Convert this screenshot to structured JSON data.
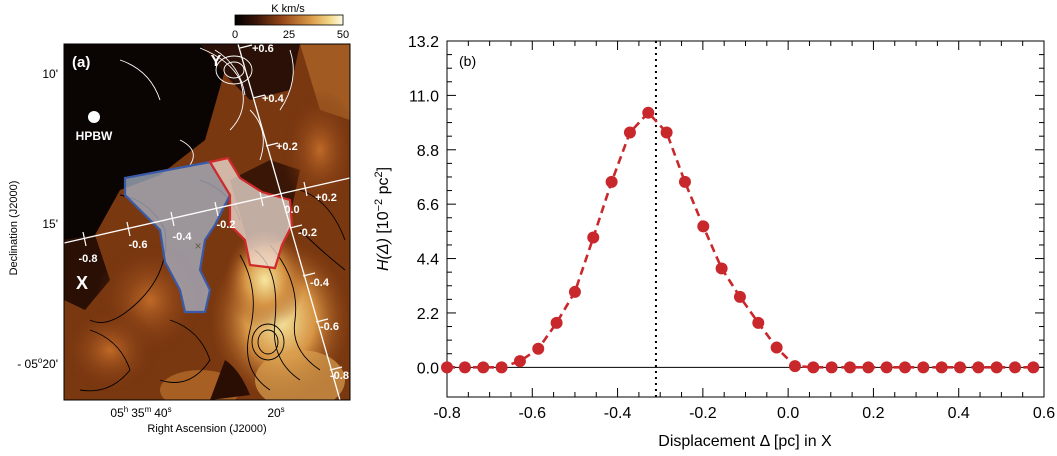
{
  "panel_a": {
    "label": "(a)",
    "colorbar": {
      "unit": "K km/s",
      "ticks": [
        "0",
        "25",
        "50"
      ]
    },
    "beam_label": "HPBW",
    "ylabel": "Declination (J2000)",
    "xlabel": "Right Ascension (J2000)",
    "dec_ticks": [
      "10'",
      "15'"
    ],
    "ra_tick_20s": "20",
    "ra_tick_20s_sup": "s",
    "dec_tick_main": "- 05",
    "dec_tick_main_sup": "o",
    "dec_tick_main_min": "20'",
    "ra_tick_main": {
      "h": "05",
      "h_sup": "h",
      "m": "35",
      "m_sup": "m",
      "s": "40",
      "s_sup": "s"
    },
    "axis_x_label": "X",
    "axis_y_label": "Y",
    "x_axis_ticks": [
      "-0.8",
      "-0.6",
      "-0.4",
      "-0.2",
      "0.0",
      "+0.2"
    ],
    "y_axis_ticks": [
      "+0.6",
      "+0.4",
      "+0.2",
      "-0.2",
      "-0.4",
      "-0.6",
      "-0.8"
    ]
  },
  "colors": {
    "marker": "#c8282c",
    "line": "#c8282c",
    "blue_outline": "#3a5aa8",
    "red_outline": "#d02a2a"
  },
  "chart_data": {
    "type": "scatter",
    "panel_label": "(b)",
    "xlabel": "Displacement Δ [pc] in X",
    "ylabel": "H(Δ) [10⁻² pc²]",
    "xlim": [
      -0.8,
      0.6
    ],
    "ylim": [
      -1.2,
      13.2
    ],
    "x_ticks": [
      "-0.8",
      "-0.6",
      "-0.4",
      "-0.2",
      "0.0",
      "0.2",
      "0.4",
      "0.6"
    ],
    "y_ticks": [
      "0.0",
      "2.2",
      "4.4",
      "6.6",
      "8.8",
      "11.0",
      "13.2"
    ],
    "peak_marker_x": -0.31,
    "grid": false,
    "series": [
      {
        "x": [
          -0.8,
          -0.758,
          -0.715,
          -0.672,
          -0.629,
          -0.586,
          -0.543,
          -0.5,
          -0.457,
          -0.414,
          -0.371,
          -0.328,
          -0.285,
          -0.242,
          -0.199,
          -0.156,
          -0.113,
          -0.07,
          -0.027,
          0.016,
          0.059,
          0.102,
          0.145,
          0.188,
          0.231,
          0.274,
          0.317,
          0.36,
          0.403,
          0.446,
          0.489,
          0.532,
          0.575
        ],
        "y": [
          0.0,
          0.0,
          0.0,
          0.0,
          0.25,
          0.75,
          1.8,
          3.05,
          5.25,
          7.5,
          9.5,
          10.3,
          9.5,
          7.5,
          5.7,
          4.0,
          2.85,
          1.8,
          0.8,
          0.05,
          0.0,
          0.0,
          0.0,
          0.0,
          0.0,
          0.0,
          0.0,
          0.0,
          0.0,
          0.0,
          0.0,
          0.0,
          0.0
        ]
      }
    ]
  }
}
